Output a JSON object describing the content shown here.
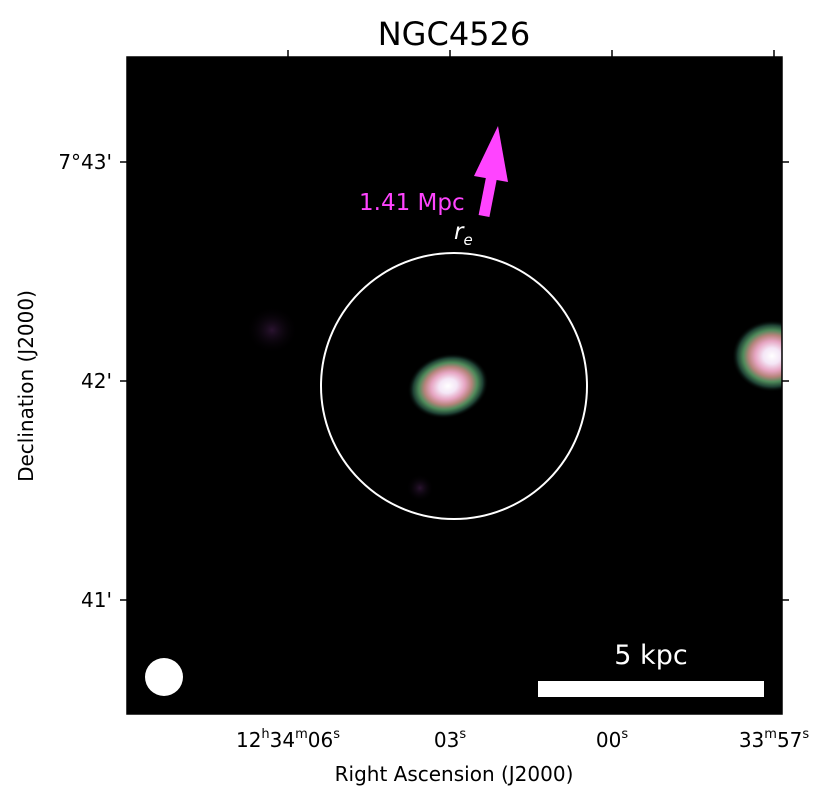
{
  "figure": {
    "title": "NGC4526",
    "xlabel": "Right Ascension (J2000)",
    "ylabel": "Declination (J2000)",
    "x_ticks": [
      {
        "h": "12",
        "hs": "h",
        "m": "34",
        "ms": "m",
        "s": "06",
        "ss": "s"
      },
      {
        "s": "03",
        "ss": "s"
      },
      {
        "s": "00",
        "ss": "s"
      },
      {
        "m": "33",
        "ms": "m",
        "s": "57",
        "ss": "s"
      }
    ],
    "y_ticks": [
      "7°43'",
      "42'",
      "41'"
    ],
    "arrow_label": "1.41 Mpc",
    "circle_label_main": "r",
    "circle_label_sub": "e",
    "scalebar_label": "5 kpc",
    "colors": {
      "background": "#000000",
      "arrow": "#ff44ff",
      "circle": "#ffffff",
      "scalebar": "#ffffff"
    }
  }
}
